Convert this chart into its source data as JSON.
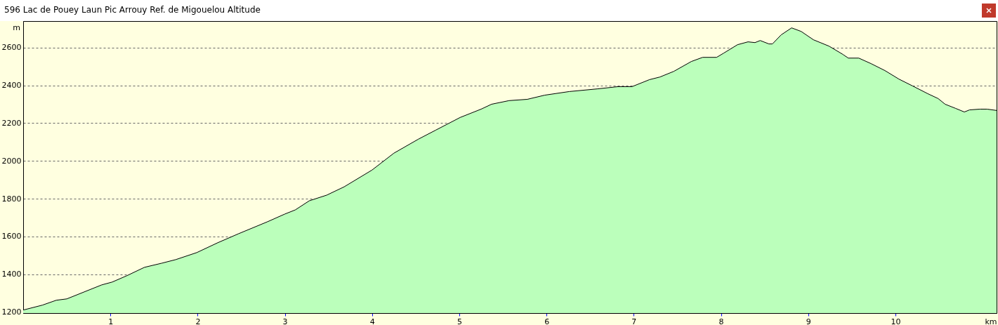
{
  "chart_data": {
    "type": "area",
    "title": "596 Lac de Pouey Laun Pic Arrouy  Ref. de Migouelou Altitude",
    "xlabel": "km",
    "ylabel": "m",
    "x": [
      0,
      0.22,
      0.38,
      0.5,
      0.7,
      0.9,
      1.02,
      1.19,
      1.39,
      1.59,
      1.75,
      1.99,
      2.23,
      2.47,
      2.8,
      3.0,
      3.12,
      3.28,
      3.48,
      3.68,
      4.0,
      4.25,
      4.53,
      4.73,
      5.01,
      5.25,
      5.37,
      5.57,
      5.78,
      5.98,
      6.26,
      6.58,
      6.82,
      6.98,
      7.18,
      7.3,
      7.46,
      7.66,
      7.79,
      7.95,
      8.03,
      8.19,
      8.31,
      8.39,
      8.45,
      8.55,
      8.59,
      8.69,
      8.81,
      8.92,
      9.06,
      9.14,
      9.24,
      9.4,
      9.46,
      9.58,
      9.72,
      9.88,
      10.04,
      10.2,
      10.37,
      10.49,
      10.57,
      10.69,
      10.79,
      10.85,
      10.97,
      11.05,
      11.16
    ],
    "series": [
      {
        "color": "#bbffbb",
        "values": [
          1211,
          1237,
          1263,
          1270,
          1307,
          1344,
          1359,
          1393,
          1437,
          1459,
          1478,
          1515,
          1567,
          1615,
          1678,
          1719,
          1741,
          1789,
          1819,
          1863,
          1952,
          2041,
          2115,
          2163,
          2230,
          2274,
          2300,
          2319,
          2326,
          2348,
          2367,
          2381,
          2393,
          2393,
          2430,
          2444,
          2474,
          2526,
          2548,
          2548,
          2570,
          2615,
          2630,
          2626,
          2637,
          2619,
          2619,
          2667,
          2704,
          2685,
          2641,
          2626,
          2607,
          2563,
          2544,
          2544,
          2515,
          2478,
          2433,
          2396,
          2356,
          2330,
          2300,
          2278,
          2259,
          2270,
          2274,
          2274,
          2267
        ]
      }
    ],
    "xlim": [
      0,
      11.16
    ],
    "xticks": [
      1,
      2,
      3,
      4,
      5,
      6,
      7,
      8,
      9,
      10
    ],
    "ylim": [
      1195,
      2740
    ],
    "yticks": [
      1200,
      1400,
      1600,
      1800,
      2000,
      2200,
      2400,
      2600
    ],
    "grid": "y"
  }
}
